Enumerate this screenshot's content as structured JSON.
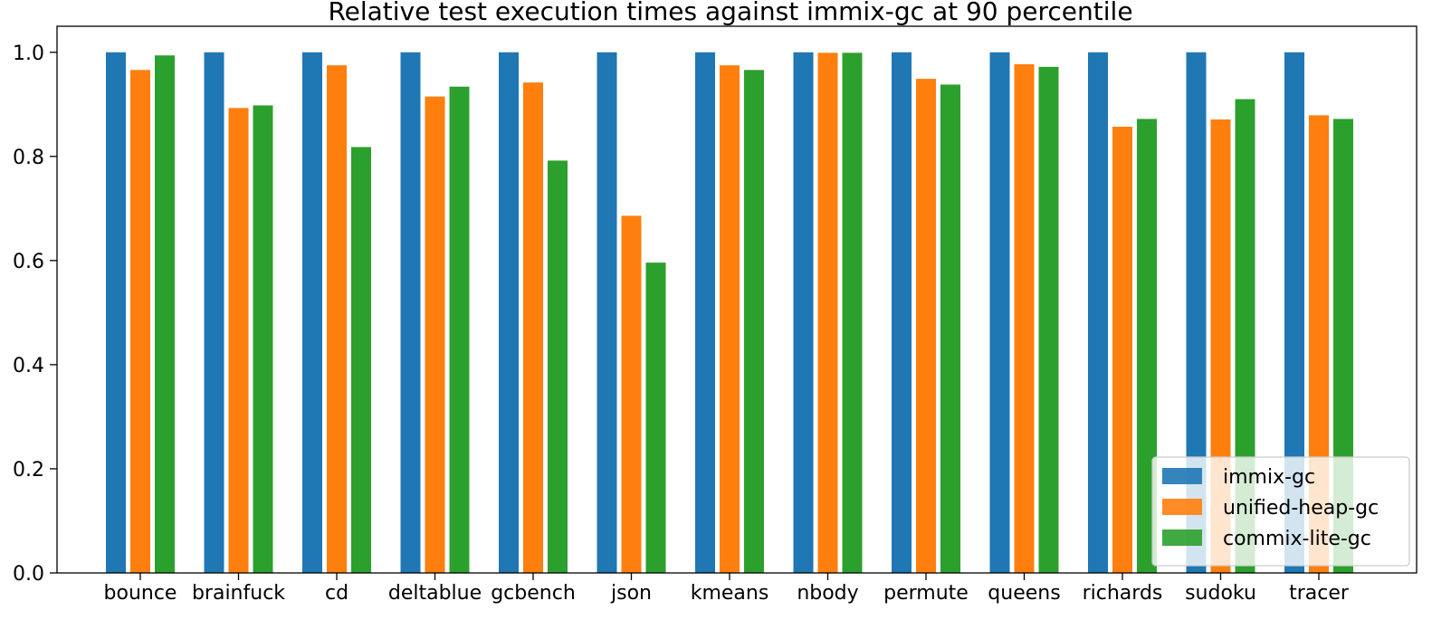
{
  "chart_data": {
    "type": "bar",
    "title": "Relative test execution times against immix-gc at 90 percentile",
    "xlabel": "",
    "ylabel": "",
    "ylim": [
      0,
      1.05
    ],
    "yticks": [
      "0.0",
      "0.2",
      "0.4",
      "0.6",
      "0.8",
      "1.0"
    ],
    "ytick_values": [
      0,
      0.2,
      0.4,
      0.6,
      0.8,
      1.0
    ],
    "grid": false,
    "legend_position": "bottom-right",
    "categories": [
      "bounce",
      "brainfuck",
      "cd",
      "deltablue",
      "gcbench",
      "json",
      "kmeans",
      "nbody",
      "permute",
      "queens",
      "richards",
      "sudoku",
      "tracer"
    ],
    "series": [
      {
        "name": "immix-gc",
        "color": "#1f77b4",
        "values": [
          1.0,
          1.0,
          1.0,
          1.0,
          1.0,
          1.0,
          1.0,
          1.0,
          1.0,
          1.0,
          1.0,
          1.0,
          1.0
        ]
      },
      {
        "name": "unified-heap-gc",
        "color": "#ff7f0e",
        "values": [
          0.966,
          0.893,
          0.975,
          0.915,
          0.942,
          0.686,
          0.975,
          0.999,
          0.949,
          0.977,
          0.857,
          0.871,
          0.879
        ]
      },
      {
        "name": "commix-lite-gc",
        "color": "#2ca02c",
        "values": [
          0.994,
          0.898,
          0.818,
          0.934,
          0.792,
          0.596,
          0.966,
          0.999,
          0.938,
          0.972,
          0.872,
          0.91,
          0.872
        ]
      }
    ]
  }
}
